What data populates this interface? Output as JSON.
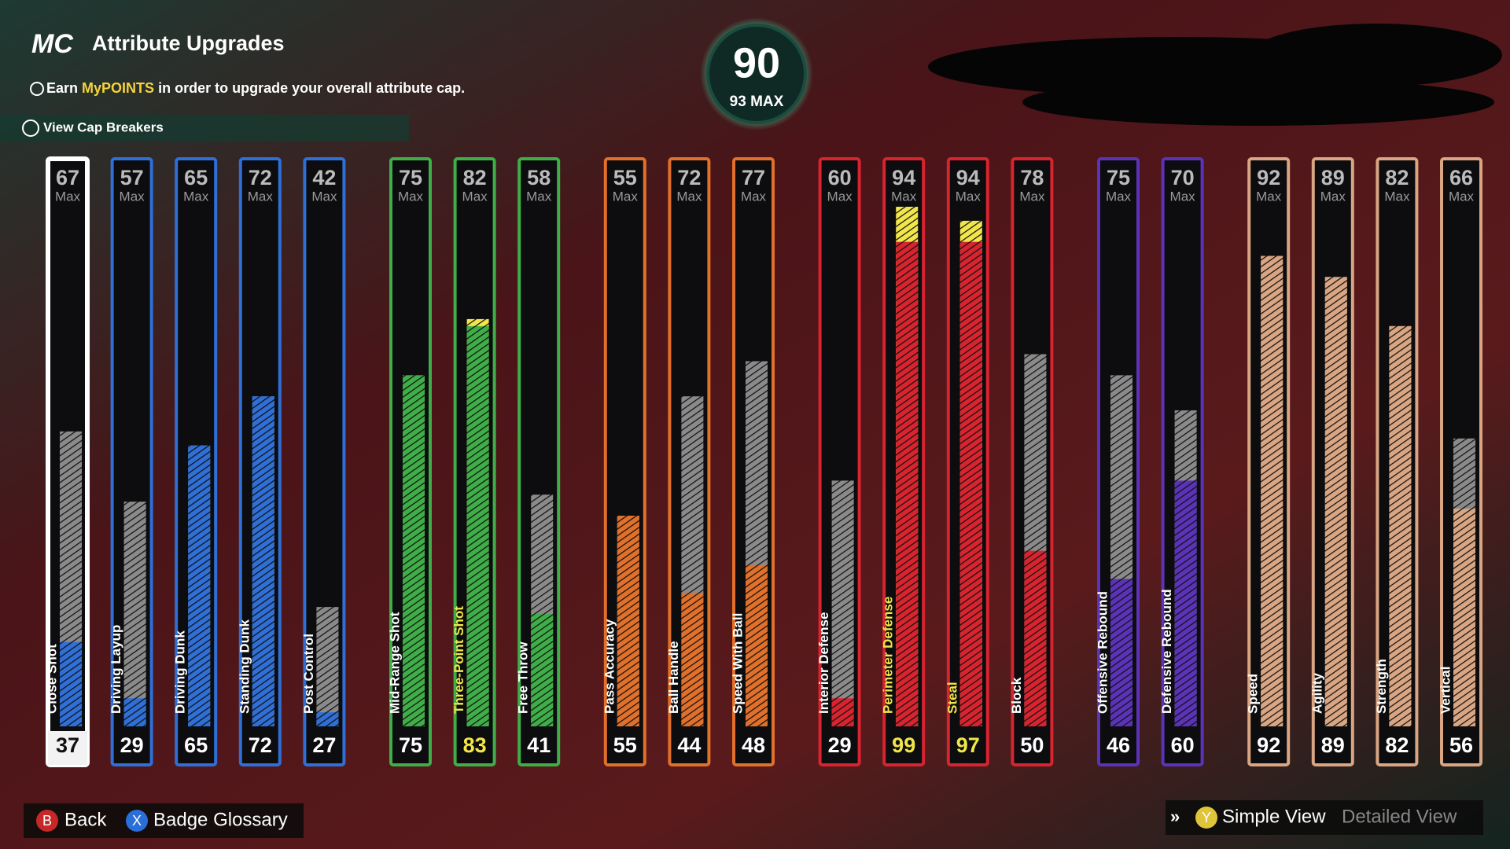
{
  "header": {
    "logo": "MC",
    "title": "Attribute Upgrades",
    "subtitle": {
      "before": "Earn",
      "highlight": "MyPOINTS",
      "after": "in order to upgrade your overall attribute cap."
    },
    "cap_breakers": "View Cap Breakers"
  },
  "overall": {
    "value": "90",
    "max": "93 MAX"
  },
  "chart_data": {
    "type": "bar",
    "max_label": "Max",
    "ylim": [
      25,
      99
    ],
    "highlight_color": "#f2e64a",
    "groups": [
      {
        "color": "#2f6fd6",
        "attributes": [
          {
            "name": "Close Shot",
            "max": 67,
            "value": 37,
            "selected": true
          },
          {
            "name": "Driving Layup",
            "max": 57,
            "value": 29
          },
          {
            "name": "Driving Dunk",
            "max": 65,
            "value": 65
          },
          {
            "name": "Standing Dunk",
            "max": 72,
            "value": 72
          },
          {
            "name": "Post Control",
            "max": 42,
            "value": 27
          }
        ]
      },
      {
        "color": "#3fae48",
        "attributes": [
          {
            "name": "Mid-Range Shot",
            "max": 75,
            "value": 75
          },
          {
            "name": "Three-Point Shot",
            "max": 82,
            "value": 83
          },
          {
            "name": "Free Throw",
            "max": 58,
            "value": 41
          }
        ]
      },
      {
        "color": "#e0702a",
        "attributes": [
          {
            "name": "Pass Accuracy",
            "max": 55,
            "value": 55
          },
          {
            "name": "Ball Handle",
            "max": 72,
            "value": 44
          },
          {
            "name": "Speed With Ball",
            "max": 77,
            "value": 48
          }
        ]
      },
      {
        "color": "#d8242f",
        "attributes": [
          {
            "name": "Interior Defense",
            "max": 60,
            "value": 29
          },
          {
            "name": "Perimeter Defense",
            "max": 94,
            "value": 99
          },
          {
            "name": "Steal",
            "max": 94,
            "value": 97
          },
          {
            "name": "Block",
            "max": 78,
            "value": 50
          }
        ]
      },
      {
        "color": "#5b33b8",
        "attributes": [
          {
            "name": "Offensive Rebound",
            "max": 75,
            "value": 46
          },
          {
            "name": "Defensive Rebound",
            "max": 70,
            "value": 60
          }
        ]
      },
      {
        "color": "#d9a582",
        "attributes": [
          {
            "name": "Speed",
            "max": 92,
            "value": 92
          },
          {
            "name": "Agility",
            "max": 89,
            "value": 89
          },
          {
            "name": "Strength",
            "max": 82,
            "value": 82
          },
          {
            "name": "Vertical",
            "max": 66,
            "value": 56
          }
        ]
      }
    ]
  },
  "footer": {
    "back_key": "B",
    "back": "Back",
    "glossary_key": "X",
    "glossary": "Badge Glossary",
    "view_key": "Y",
    "simple_view": "Simple View",
    "detailed_view": "Detailed View"
  }
}
